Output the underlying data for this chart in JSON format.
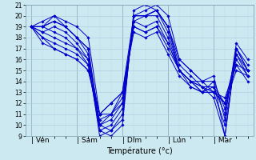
{
  "xlabel": "Température (°c)",
  "ylim": [
    9,
    21
  ],
  "yticks": [
    9,
    10,
    11,
    12,
    13,
    14,
    15,
    16,
    17,
    18,
    19,
    20,
    21
  ],
  "day_labels": [
    "Ven",
    "Sam",
    "Dim",
    "Lun",
    "Mar"
  ],
  "day_positions": [
    0,
    24,
    48,
    72,
    96
  ],
  "background_color": "#cce8f0",
  "grid_major_color": "#aaccdd",
  "grid_minor_color": "#bbdde8",
  "line_color": "#0000cc",
  "series": [
    {
      "y": [
        19,
        19.5,
        20,
        19,
        18,
        17,
        10,
        9.5,
        10.5,
        20,
        20.5,
        21,
        20,
        16,
        15,
        14,
        13,
        12,
        16.5,
        15
      ],
      "ls": "-"
    },
    {
      "y": [
        19,
        19,
        19.5,
        19,
        18,
        16.5,
        9.5,
        9,
        10,
        20.5,
        21,
        20.5,
        19,
        15.5,
        14.5,
        13.5,
        12.5,
        9,
        17,
        15
      ],
      "ls": "-"
    },
    {
      "y": [
        19,
        18.5,
        19,
        18.5,
        17.5,
        16,
        9,
        9.5,
        11,
        20,
        20,
        20.5,
        18.5,
        15,
        14,
        13,
        13,
        10,
        16.5,
        14.5
      ],
      "ls": "-"
    },
    {
      "y": [
        19,
        19,
        18.5,
        18,
        17,
        15.5,
        9.5,
        10,
        11.5,
        19.5,
        20,
        20,
        18,
        15,
        14,
        13.5,
        13.5,
        11,
        17,
        15
      ],
      "ls": "-"
    },
    {
      "y": [
        19,
        18,
        17.5,
        17,
        16.5,
        15.5,
        10,
        10.5,
        12,
        19.5,
        19,
        19.5,
        17.5,
        15,
        14,
        13,
        14,
        11.5,
        16,
        14.5
      ],
      "ls": "-"
    },
    {
      "y": [
        19,
        17.5,
        17,
        16.5,
        16,
        15,
        10.5,
        11,
        12.5,
        19,
        18.5,
        19,
        17,
        15,
        14,
        13.5,
        13,
        12,
        15.5,
        14
      ],
      "ls": "-"
    },
    {
      "y": [
        19,
        19,
        20,
        19.5,
        19,
        18,
        11,
        11,
        13,
        20,
        20,
        20.5,
        19,
        16,
        15,
        14,
        14.5,
        10.5,
        17.5,
        16
      ],
      "ls": "-"
    },
    {
      "y": [
        19,
        18,
        17,
        16.5,
        16,
        15,
        11,
        12,
        13,
        18.5,
        18,
        18.5,
        16.5,
        14.5,
        13.5,
        13,
        13.5,
        12,
        15,
        14.5
      ],
      "ls": "-"
    },
    {
      "y": [
        19,
        19,
        19.5,
        19,
        18,
        17,
        10,
        11,
        12,
        20,
        20,
        20.5,
        19,
        15,
        14,
        14,
        14,
        9,
        17,
        15.5
      ],
      "ls": "-"
    },
    {
      "y": [
        19,
        18.5,
        18,
        17.5,
        17,
        16,
        11,
        12,
        13,
        19,
        18.5,
        19,
        17.5,
        15,
        13.5,
        13,
        13,
        12.5,
        15.5,
        15
      ],
      "ls": "-"
    }
  ]
}
